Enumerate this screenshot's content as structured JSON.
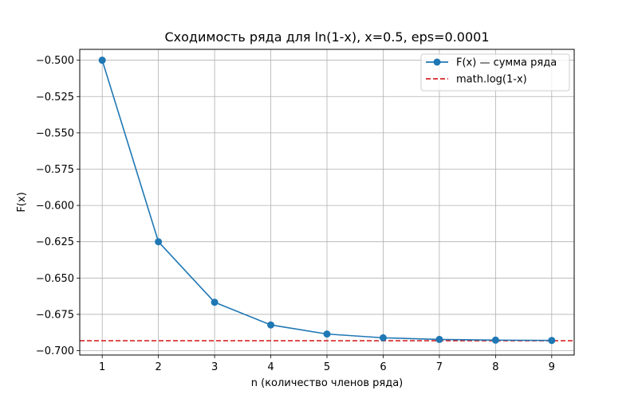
{
  "chart_data": {
    "type": "line",
    "title": "Сходимость ряда для ln(1-x), x=0.5, eps=0.0001",
    "xlabel": "n (количество членов ряда)",
    "ylabel": "F(x)",
    "x": [
      1,
      2,
      3,
      4,
      5,
      6,
      7,
      8,
      9
    ],
    "xlim": [
      0.6,
      9.4
    ],
    "ylim": [
      -0.703,
      -0.4925
    ],
    "x_ticks": [
      1,
      2,
      3,
      4,
      5,
      6,
      7,
      8,
      9
    ],
    "x_tick_labels": [
      "1",
      "2",
      "3",
      "4",
      "5",
      "6",
      "7",
      "8",
      "9"
    ],
    "y_ticks": [
      -0.5,
      -0.525,
      -0.55,
      -0.575,
      -0.6,
      -0.625,
      -0.65,
      -0.675,
      -0.7
    ],
    "y_tick_labels": [
      "−0.500",
      "−0.525",
      "−0.550",
      "−0.575",
      "−0.600",
      "−0.625",
      "−0.650",
      "−0.675",
      "−0.700"
    ],
    "grid": true,
    "legend_position": "top-right",
    "series": [
      {
        "name": "F(x) — сумма ряда",
        "style": "line-with-circle-markers",
        "color": "#1f77b4",
        "values": [
          -0.5,
          -0.625,
          -0.666667,
          -0.682292,
          -0.688542,
          -0.691146,
          -0.692262,
          -0.69275,
          -0.692967
        ]
      }
    ],
    "reference_lines": [
      {
        "name": "math.log(1-x)",
        "style": "dashed",
        "color": "#d62728",
        "y": -0.693147
      }
    ]
  }
}
